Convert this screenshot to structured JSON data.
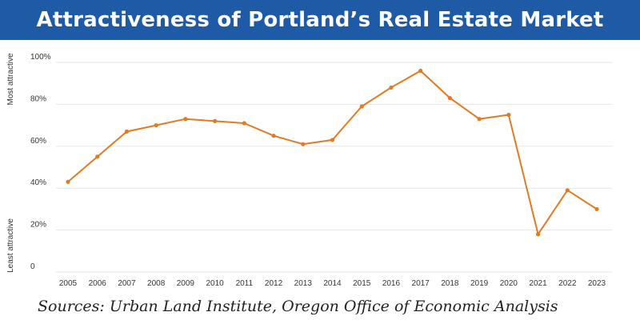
{
  "header": {
    "title": "Attractiveness of Portland’s Real Estate Market"
  },
  "footer": {
    "source": "Sources: Urban Land Institute, Oregon Office of Economic Analysis"
  },
  "colors": {
    "title_bar": "#1f5aa6",
    "line": "#e07b22",
    "grid": "#e6e6e6"
  },
  "chart_data": {
    "type": "line",
    "title": "Attractiveness of Portland’s Real Estate Market",
    "x": [
      "2005",
      "2006",
      "2007",
      "2008",
      "2009",
      "2010",
      "2011",
      "2012",
      "2013",
      "2014",
      "2015",
      "2016",
      "2017",
      "2018",
      "2019",
      "2020",
      "2021",
      "2022",
      "2023"
    ],
    "series": [
      {
        "values": [
          43,
          55,
          67,
          70,
          73,
          72,
          71,
          65,
          61,
          63,
          79,
          88,
          96,
          83,
          73,
          75,
          18,
          39,
          30
        ]
      }
    ],
    "ylim": [
      0,
      100
    ],
    "yticks": [
      "0",
      "20%",
      "40%",
      "60%",
      "80%",
      "100%"
    ],
    "ylabel_top": "Most attractive",
    "ylabel_bottom": "Least attractive",
    "grid": true,
    "legend": "none"
  }
}
